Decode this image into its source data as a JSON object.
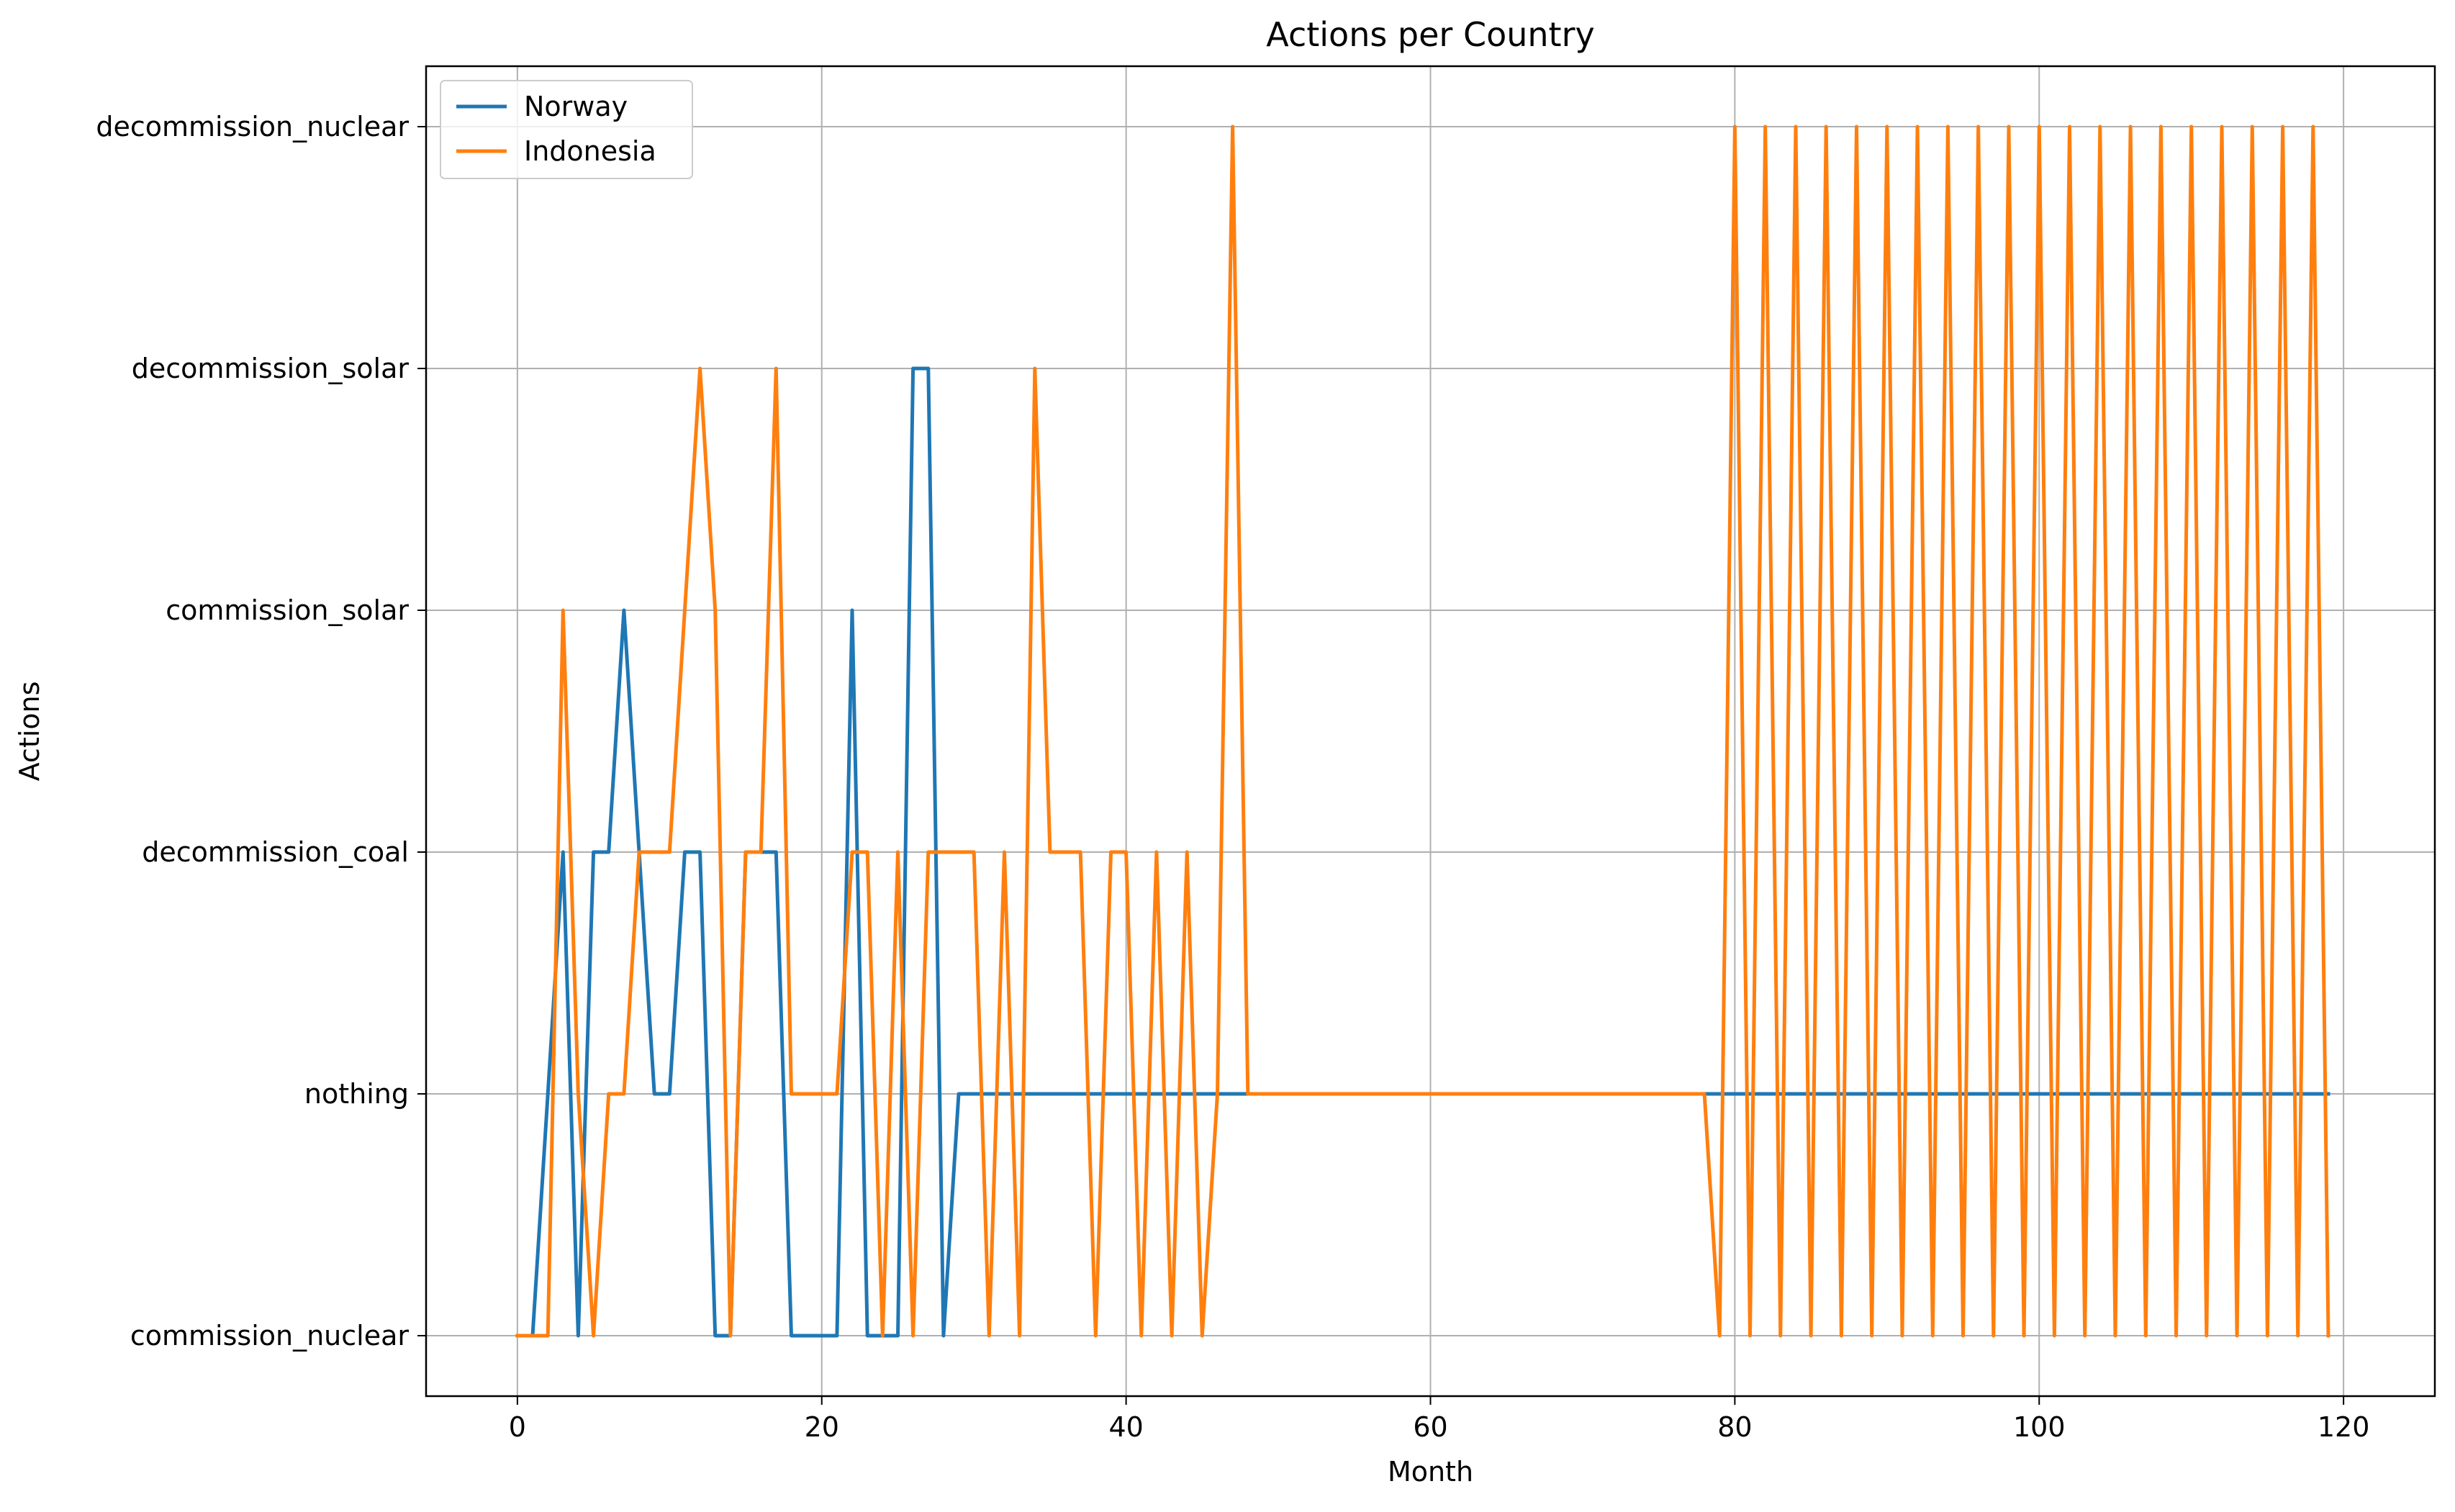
{
  "chart_data": {
    "type": "line",
    "title": "Actions per Country",
    "xlabel": "Month",
    "ylabel": "Actions",
    "xlim": [
      -6,
      126
    ],
    "ylim": [
      -0.25,
      5.25
    ],
    "xticks": [
      0,
      20,
      40,
      60,
      80,
      100,
      120
    ],
    "xtick_labels": [
      "0",
      "20",
      "40",
      "60",
      "80",
      "100",
      "120"
    ],
    "categories_y": [
      "commission_nuclear",
      "nothing",
      "decommission_coal",
      "commission_solar",
      "decommission_solar",
      "decommission_nuclear"
    ],
    "grid": true,
    "legend_position": "upper-left",
    "colors": {
      "Norway": "#1f77b4",
      "Indonesia": "#ff7f0e"
    },
    "series": [
      {
        "name": "Norway",
        "color": "#1f77b4",
        "x": [
          0,
          1,
          2,
          3,
          4,
          5,
          6,
          7,
          8,
          9,
          10,
          11,
          12,
          13,
          14,
          15,
          16,
          17,
          18,
          19,
          20,
          21,
          22,
          23,
          24,
          25,
          26,
          27,
          28,
          29,
          30,
          31,
          32,
          33,
          34,
          35,
          36,
          37,
          38,
          39,
          40,
          41,
          42,
          43,
          44,
          45,
          46,
          47,
          48,
          49,
          50,
          51,
          52,
          53,
          54,
          55,
          56,
          57,
          58,
          59,
          60,
          61,
          62,
          63,
          64,
          65,
          66,
          67,
          68,
          69,
          70,
          71,
          72,
          73,
          74,
          75,
          76,
          77,
          78,
          79,
          80,
          81,
          82,
          83,
          84,
          85,
          86,
          87,
          88,
          89,
          90,
          91,
          92,
          93,
          94,
          95,
          96,
          97,
          98,
          99,
          100,
          101,
          102,
          103,
          104,
          105,
          106,
          107,
          108,
          109,
          110,
          111,
          112,
          113,
          114,
          115,
          116,
          117,
          118,
          119
        ],
        "values": [
          "commission_nuclear",
          "commission_nuclear",
          "nothing",
          "decommission_coal",
          "commission_nuclear",
          "decommission_coal",
          "decommission_coal",
          "commission_solar",
          "decommission_coal",
          "nothing",
          "nothing",
          "decommission_coal",
          "decommission_coal",
          "commission_nuclear",
          "commission_nuclear",
          "decommission_coal",
          "decommission_coal",
          "decommission_coal",
          "commission_nuclear",
          "commission_nuclear",
          "commission_nuclear",
          "commission_nuclear",
          "commission_solar",
          "commission_nuclear",
          "commission_nuclear",
          "commission_nuclear",
          "decommission_solar",
          "decommission_solar",
          "commission_nuclear",
          "nothing",
          "nothing",
          "nothing",
          "nothing",
          "nothing",
          "nothing",
          "nothing",
          "nothing",
          "nothing",
          "nothing",
          "nothing",
          "nothing",
          "nothing",
          "nothing",
          "nothing",
          "nothing",
          "nothing",
          "nothing",
          "nothing",
          "nothing",
          "nothing",
          "nothing",
          "nothing",
          "nothing",
          "nothing",
          "nothing",
          "nothing",
          "nothing",
          "nothing",
          "nothing",
          "nothing",
          "nothing",
          "nothing",
          "nothing",
          "nothing",
          "nothing",
          "nothing",
          "nothing",
          "nothing",
          "nothing",
          "nothing",
          "nothing",
          "nothing",
          "nothing",
          "nothing",
          "nothing",
          "nothing",
          "nothing",
          "nothing",
          "nothing",
          "nothing",
          "nothing",
          "nothing",
          "nothing",
          "nothing",
          "nothing",
          "nothing",
          "nothing",
          "nothing",
          "nothing",
          "nothing",
          "nothing",
          "nothing",
          "nothing",
          "nothing",
          "nothing",
          "nothing",
          "nothing",
          "nothing",
          "nothing",
          "nothing",
          "nothing",
          "nothing",
          "nothing",
          "nothing",
          "nothing",
          "nothing",
          "nothing",
          "nothing",
          "nothing",
          "nothing",
          "nothing",
          "nothing",
          "nothing",
          "nothing",
          "nothing",
          "nothing",
          "nothing",
          "nothing",
          "nothing",
          "nothing"
        ]
      },
      {
        "name": "Indonesia",
        "color": "#ff7f0e",
        "x": [
          0,
          1,
          2,
          3,
          4,
          5,
          6,
          7,
          8,
          9,
          10,
          11,
          12,
          13,
          14,
          15,
          16,
          17,
          18,
          19,
          20,
          21,
          22,
          23,
          24,
          25,
          26,
          27,
          28,
          29,
          30,
          31,
          32,
          33,
          34,
          35,
          36,
          37,
          38,
          39,
          40,
          41,
          42,
          43,
          44,
          45,
          46,
          47,
          48,
          49,
          50,
          51,
          52,
          53,
          54,
          55,
          56,
          57,
          58,
          59,
          60,
          61,
          62,
          63,
          64,
          65,
          66,
          67,
          68,
          69,
          70,
          71,
          72,
          73,
          74,
          75,
          76,
          77,
          78,
          79,
          80,
          81,
          82,
          83,
          84,
          85,
          86,
          87,
          88,
          89,
          90,
          91,
          92,
          93,
          94,
          95,
          96,
          97,
          98,
          99,
          100,
          101,
          102,
          103,
          104,
          105,
          106,
          107,
          108,
          109,
          110,
          111,
          112,
          113,
          114,
          115,
          116,
          117,
          118,
          119
        ],
        "values": [
          "commission_nuclear",
          "commission_nuclear",
          "commission_nuclear",
          "commission_solar",
          "nothing",
          "commission_nuclear",
          "nothing",
          "nothing",
          "decommission_coal",
          "decommission_coal",
          "decommission_coal",
          "commission_solar",
          "decommission_solar",
          "commission_solar",
          "commission_nuclear",
          "decommission_coal",
          "decommission_coal",
          "decommission_solar",
          "nothing",
          "nothing",
          "nothing",
          "nothing",
          "decommission_coal",
          "decommission_coal",
          "commission_nuclear",
          "decommission_coal",
          "commission_nuclear",
          "decommission_coal",
          "decommission_coal",
          "decommission_coal",
          "decommission_coal",
          "commission_nuclear",
          "decommission_coal",
          "commission_nuclear",
          "decommission_solar",
          "decommission_coal",
          "decommission_coal",
          "decommission_coal",
          "commission_nuclear",
          "decommission_coal",
          "decommission_coal",
          "commission_nuclear",
          "decommission_coal",
          "commission_nuclear",
          "decommission_coal",
          "commission_nuclear",
          "nothing",
          "decommission_nuclear",
          "nothing",
          "nothing",
          "nothing",
          "nothing",
          "nothing",
          "nothing",
          "nothing",
          "nothing",
          "nothing",
          "nothing",
          "nothing",
          "nothing",
          "nothing",
          "nothing",
          "nothing",
          "nothing",
          "nothing",
          "nothing",
          "nothing",
          "nothing",
          "nothing",
          "nothing",
          "nothing",
          "nothing",
          "nothing",
          "nothing",
          "nothing",
          "nothing",
          "nothing",
          "nothing",
          "nothing",
          "commission_nuclear",
          "decommission_nuclear",
          "commission_nuclear",
          "decommission_nuclear",
          "commission_nuclear",
          "decommission_nuclear",
          "commission_nuclear",
          "decommission_nuclear",
          "commission_nuclear",
          "decommission_nuclear",
          "commission_nuclear",
          "decommission_nuclear",
          "commission_nuclear",
          "decommission_nuclear",
          "commission_nuclear",
          "decommission_nuclear",
          "commission_nuclear",
          "decommission_nuclear",
          "commission_nuclear",
          "decommission_nuclear",
          "commission_nuclear",
          "decommission_nuclear",
          "commission_nuclear",
          "decommission_nuclear",
          "commission_nuclear",
          "decommission_nuclear",
          "commission_nuclear",
          "decommission_nuclear",
          "commission_nuclear",
          "decommission_nuclear",
          "commission_nuclear",
          "decommission_nuclear",
          "commission_nuclear",
          "decommission_nuclear",
          "commission_nuclear",
          "decommission_nuclear",
          "commission_nuclear",
          "decommission_nuclear",
          "commission_nuclear",
          "decommission_nuclear",
          "commission_nuclear"
        ]
      }
    ]
  }
}
